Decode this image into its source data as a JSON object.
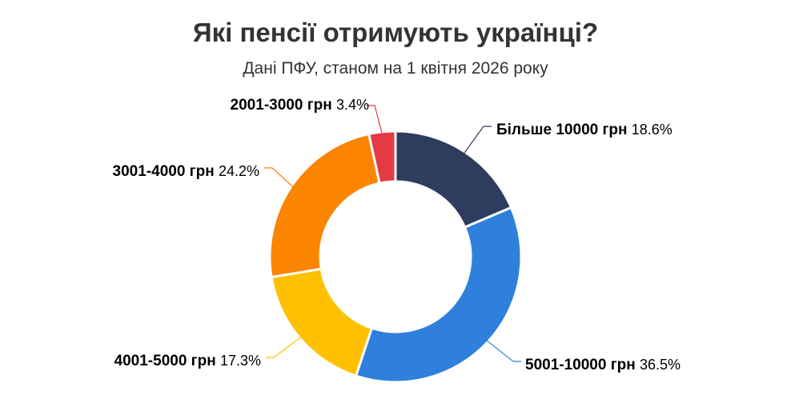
{
  "chart_data": {
    "type": "pie",
    "subtype": "donut",
    "title": "Які пенсії отримують українці?",
    "subtitle": "Дані ПФУ, станом на 1 квітня 2026 року",
    "unit": "%",
    "legend": "none",
    "slices": [
      {
        "label": "Більше 10000 грн",
        "value": 18.6,
        "pct_label": "18.6%",
        "color": "#2e3d5e"
      },
      {
        "label": "5001-10000 грн",
        "value": 36.5,
        "pct_label": "36.5%",
        "color": "#2f80dc"
      },
      {
        "label": "4001-5000 грн",
        "value": 17.3,
        "pct_label": "17.3%",
        "color": "#ffc000"
      },
      {
        "label": "3001-4000 грн",
        "value": 24.2,
        "pct_label": "24.2%",
        "color": "#fb8500"
      },
      {
        "label": "2001-3000 грн",
        "value": 3.4,
        "pct_label": "3.4%",
        "color": "#e63946"
      }
    ]
  }
}
